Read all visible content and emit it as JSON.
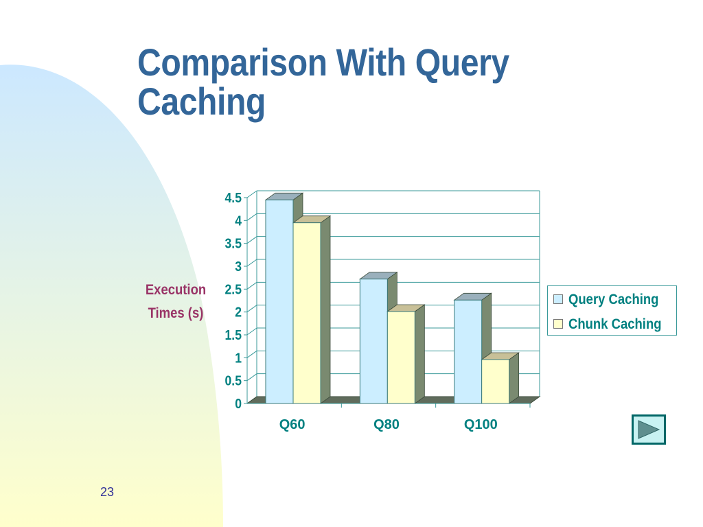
{
  "slide": {
    "title": "Comparison With Query Caching",
    "page_number": "23",
    "nav_button_icon": "play-right-triangle-icon"
  },
  "colors": {
    "title": "#336699",
    "axis_text": "#008080",
    "ylabel_text": "#993366",
    "query_caching_fill": "#cceeff",
    "chunk_caching_fill": "#ffffcc",
    "side_shade": "#7a8a70",
    "background_shape_top": "#cce8ff",
    "background_shape_bottom": "#ffffcc"
  },
  "chart_data": {
    "type": "bar",
    "style": "3d-clustered-column",
    "categories": [
      "Q60",
      "Q80",
      "Q100"
    ],
    "series": [
      {
        "name": "Query Caching",
        "values": [
          4.45,
          2.72,
          2.26
        ],
        "color": "#cceeff"
      },
      {
        "name": "Chunk Caching",
        "values": [
          3.95,
          2.01,
          0.96
        ],
        "color": "#ffffcc"
      }
    ],
    "ylabel": [
      "Execution",
      "Times (s)"
    ],
    "xlabel": "",
    "ylim": [
      0,
      4.5
    ],
    "yticks": [
      "0",
      "0.5",
      "1",
      "1.5",
      "2",
      "2.5",
      "3",
      "3.5",
      "4",
      "4.5"
    ],
    "grid": true,
    "legend_position": "right"
  }
}
